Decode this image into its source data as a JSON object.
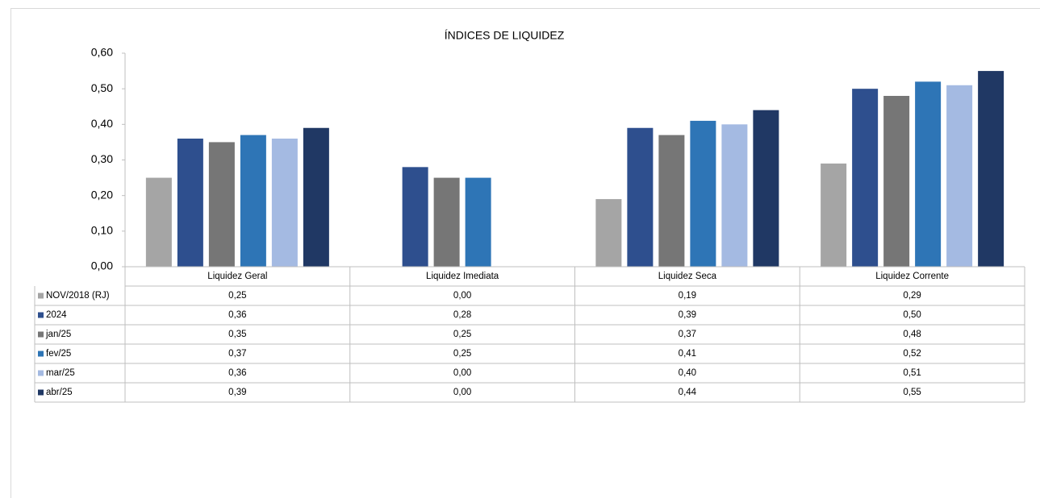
{
  "chart_data": {
    "type": "bar",
    "title": "ÍNDICES DE LIQUIDEZ",
    "categories": [
      "Liquidez Geral",
      "Liquidez Imediata",
      "Liquidez Seca",
      "Liquidez Corrente"
    ],
    "series": [
      {
        "name": "NOV/2018 (RJ)",
        "color": "#a5a5a5",
        "values": [
          0.25,
          0,
          0.19,
          0.29
        ],
        "value_labels": [
          "0,25",
          "0,00",
          "0,19",
          "0,29"
        ]
      },
      {
        "name": "2024",
        "color": "#2e4f8e",
        "values": [
          0.36,
          0.28,
          0.39,
          0.5
        ],
        "value_labels": [
          "0,36",
          "0,28",
          "0,39",
          "0,50"
        ]
      },
      {
        "name": "jan/25",
        "color": "#767676",
        "values": [
          0.35,
          0.25,
          0.37,
          0.48
        ],
        "value_labels": [
          "0,35",
          "0,25",
          "0,37",
          "0,48"
        ]
      },
      {
        "name": "fev/25",
        "color": "#2e75b6",
        "values": [
          0.37,
          0.25,
          0.41,
          0.52
        ],
        "value_labels": [
          "0,37",
          "0,25",
          "0,41",
          "0,52"
        ]
      },
      {
        "name": "mar/25",
        "color": "#a4bae2",
        "values": [
          0.36,
          0,
          0.4,
          0.51
        ],
        "value_labels": [
          "0,36",
          "0,00",
          "0,40",
          "0,51"
        ]
      },
      {
        "name": "abr/25",
        "color": "#203864",
        "values": [
          0.39,
          0,
          0.44,
          0.55
        ],
        "value_labels": [
          "0,39",
          "0,00",
          "0,44",
          "0,55"
        ]
      }
    ],
    "ylim": [
      0,
      0.6
    ],
    "yticks": [
      {
        "value": 0,
        "label": "0,00"
      },
      {
        "value": 0.1,
        "label": "0,10"
      },
      {
        "value": 0.2,
        "label": "0,20"
      },
      {
        "value": 0.3,
        "label": "0,30"
      },
      {
        "value": 0.4,
        "label": "0,40"
      },
      {
        "value": 0.5,
        "label": "0,50"
      },
      {
        "value": 0.6,
        "label": "0,60"
      }
    ]
  }
}
